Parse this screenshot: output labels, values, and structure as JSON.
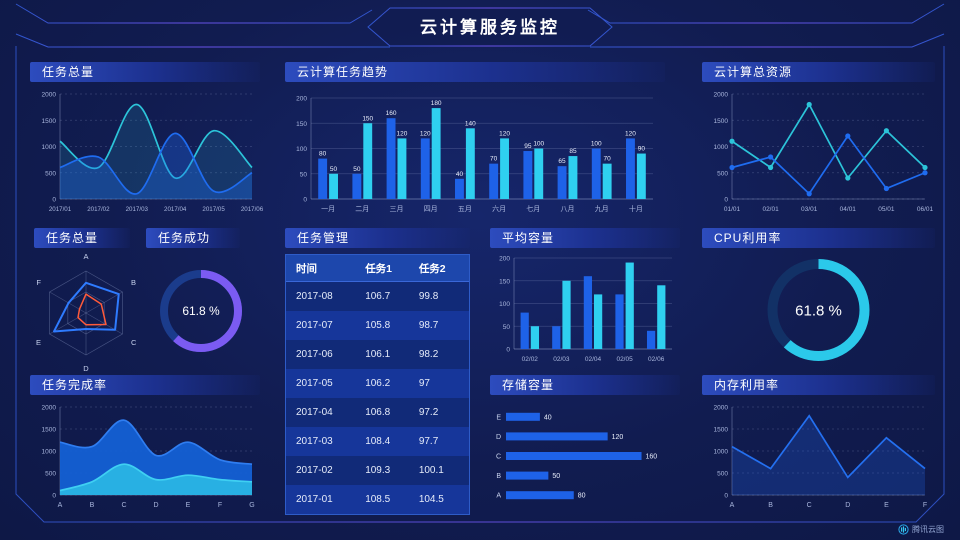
{
  "header": {
    "title": "云计算服务监控"
  },
  "watermark": {
    "label": "腾讯云图"
  },
  "colors": {
    "blue": "#1E62E8",
    "cyan": "#2FD0F0",
    "purple": "#7B5BF2",
    "orange": "#FF5A3A",
    "frame": "#2F55CC",
    "bg": "#111C50"
  },
  "panels": {
    "tasks_total": "任务总量",
    "trend": "云计算任务趋势",
    "resources": "云计算总资源",
    "radar": "任务总量",
    "success": "任务成功",
    "management": "任务管理",
    "avg": "平均容量",
    "cpu": "CPU利用率",
    "completion": "任务完成率",
    "storage": "存储容量",
    "memory": "内存利用率"
  },
  "table": {
    "headers": [
      "时间",
      "任务1",
      "任务2"
    ],
    "rows": [
      [
        "2017-08",
        "106.7",
        "99.8"
      ],
      [
        "2017-07",
        "105.8",
        "98.7"
      ],
      [
        "2017-06",
        "106.1",
        "98.2"
      ],
      [
        "2017-05",
        "106.2",
        "97"
      ],
      [
        "2017-04",
        "106.8",
        "97.2"
      ],
      [
        "2017-03",
        "108.4",
        "97.7"
      ],
      [
        "2017-02",
        "109.3",
        "100.1"
      ],
      [
        "2017-01",
        "108.5",
        "104.5"
      ]
    ]
  },
  "chart_data": [
    {
      "id": "tasks-total",
      "type": "area",
      "smooth": true,
      "title": "任务总量",
      "categories": [
        "2017/01",
        "2017/02",
        "2017/03",
        "2017/04",
        "2017/05",
        "2017/06"
      ],
      "series": [
        {
          "name": "series-cyan",
          "color": "#2CC4D9",
          "fill": "rgba(44,196,217,0.15)",
          "values": [
            1100,
            600,
            1800,
            400,
            1300,
            600
          ]
        },
        {
          "name": "series-blue",
          "color": "#1F6CF0",
          "fill": "rgba(31,108,240,0.32)",
          "values": [
            600,
            800,
            100,
            1250,
            150,
            500
          ]
        }
      ],
      "ylim": [
        0,
        2000
      ],
      "yticks": [
        0,
        500,
        1000,
        1500,
        2000
      ],
      "grid": "dashed",
      "legend": "none"
    },
    {
      "id": "task-trend",
      "type": "bar",
      "title": "云计算任务趋势",
      "labels": true,
      "categories": [
        "一月",
        "二月",
        "三月",
        "四月",
        "五月",
        "六月",
        "七月",
        "八月",
        "九月",
        "十月"
      ],
      "series": [
        {
          "name": "series-blue",
          "color": "#1E62E8",
          "values": [
            80,
            50,
            160,
            120,
            40,
            70,
            95,
            65,
            100,
            120
          ]
        },
        {
          "name": "series-cyan",
          "color": "#2FD0F0",
          "values": [
            50,
            150,
            120,
            180,
            140,
            120,
            100,
            85,
            70,
            90
          ]
        }
      ],
      "ylim": [
        0,
        200
      ],
      "yticks": [
        0,
        50,
        100,
        150,
        200
      ],
      "grid": "solid",
      "legend": "none"
    },
    {
      "id": "cloud-resources",
      "type": "line",
      "markers": true,
      "title": "云计算总资源",
      "categories": [
        "01/01",
        "02/01",
        "03/01",
        "04/01",
        "05/01",
        "06/01"
      ],
      "series": [
        {
          "name": "series-cyan",
          "color": "#2CC4D9",
          "values": [
            1100,
            600,
            1800,
            400,
            1300,
            600
          ]
        },
        {
          "name": "series-blue",
          "color": "#1F6CF0",
          "values": [
            600,
            800,
            100,
            1200,
            200,
            500
          ]
        }
      ],
      "ylim": [
        0,
        2000
      ],
      "yticks": [
        0,
        500,
        1000,
        1500,
        2000
      ],
      "grid": "dashed",
      "legend": "none"
    },
    {
      "id": "tasks-radar",
      "type": "radar",
      "title": "任务总量",
      "axes": [
        "A",
        "B",
        "C",
        "D",
        "E",
        "F"
      ],
      "max": 100,
      "series": [
        {
          "name": "series-blue",
          "color": "#2E7BFF",
          "width": 2,
          "values": [
            72,
            90,
            80,
            38,
            88,
            48
          ]
        },
        {
          "name": "series-orange",
          "color": "#FF5A3A",
          "width": 1.5,
          "values": [
            45,
            42,
            55,
            28,
            22,
            18
          ]
        }
      ]
    },
    {
      "id": "task-success",
      "type": "donut",
      "title": "任务成功",
      "value": 61.8,
      "label": "61.8 %",
      "color": "#7B5BF2",
      "track": "#1B3C8C"
    },
    {
      "id": "avg-capacity",
      "type": "bar",
      "title": "平均容量",
      "labels": false,
      "categories": [
        "02/02",
        "02/03",
        "02/04",
        "02/05",
        "02/06"
      ],
      "series": [
        {
          "name": "series-blue",
          "color": "#1E62E8",
          "values": [
            80,
            50,
            160,
            120,
            40
          ]
        },
        {
          "name": "series-cyan",
          "color": "#2FD0F0",
          "values": [
            50,
            150,
            120,
            190,
            140
          ]
        }
      ],
      "ylim": [
        0,
        200
      ],
      "yticks": [
        0,
        50,
        100,
        150,
        200
      ],
      "grid": "solid",
      "legend": "none"
    },
    {
      "id": "storage",
      "type": "hbar",
      "title": "存储容量",
      "color": "#1E62E8",
      "categories": [
        "E",
        "D",
        "C",
        "B",
        "A"
      ],
      "values": [
        40,
        120,
        160,
        50,
        80
      ],
      "xmax": 170,
      "labels": true
    },
    {
      "id": "cpu",
      "type": "donut",
      "title": "CPU利用率",
      "value": 61.8,
      "label": "61.8 %",
      "color": "#2BC9EA",
      "track": "#123166"
    },
    {
      "id": "memory",
      "type": "area",
      "smooth": false,
      "title": "内存利用率",
      "categories": [
        "A",
        "B",
        "C",
        "D",
        "E",
        "F"
      ],
      "series": [
        {
          "name": "series-blue",
          "color": "#2470F0",
          "fill": "rgba(32,95,220,0.28)",
          "values": [
            1100,
            600,
            1800,
            400,
            1300,
            600
          ]
        }
      ],
      "ylim": [
        0,
        2000
      ],
      "yticks": [
        0,
        500,
        1000,
        1500,
        2000
      ],
      "grid": "dashed",
      "legend": "none"
    },
    {
      "id": "completion",
      "type": "area",
      "smooth": true,
      "title": "任务完成率",
      "categories": [
        "A",
        "B",
        "C",
        "D",
        "E",
        "F",
        "G"
      ],
      "series": [
        {
          "name": "series-blue",
          "color": "#2F7DF0",
          "fill": "rgba(20,96,212,0.95)",
          "values": [
            1200,
            1100,
            1700,
            900,
            1200,
            800,
            700
          ]
        },
        {
          "name": "series-cyan",
          "color": "#3FD0F2",
          "fill": "rgba(41,180,228,0.95)",
          "values": [
            100,
            300,
            700,
            350,
            450,
            350,
            300
          ]
        }
      ],
      "ylim": [
        0,
        2000
      ],
      "yticks": [
        0,
        500,
        1000,
        1500,
        2000
      ],
      "grid": "dashed",
      "legend": "none"
    }
  ]
}
